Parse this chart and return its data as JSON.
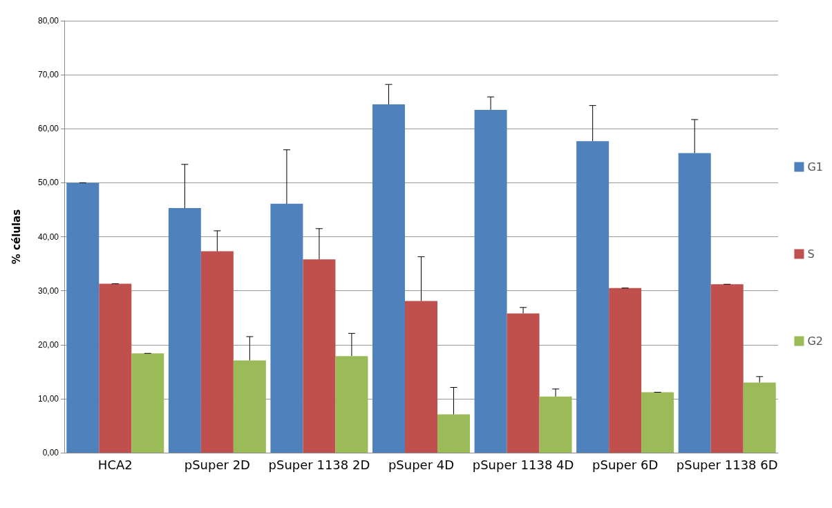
{
  "chart_data": {
    "type": "bar",
    "ylabel": "% células",
    "categories": [
      "HCA2",
      "pSuper 2D",
      "pSuper 1138 2D",
      "pSuper 4D",
      "pSuper 1138 4D",
      "pSuper 6D",
      "pSuper 1138 6D"
    ],
    "series": [
      {
        "name": "G1",
        "color": "#4f81bd",
        "values": [
          50.0,
          45.3,
          46.1,
          64.5,
          63.5,
          57.7,
          55.5
        ],
        "errors": [
          null,
          [
            45.3,
            53.4
          ],
          [
            46.1,
            56.1
          ],
          [
            64.5,
            68.2
          ],
          [
            63.5,
            65.9
          ],
          [
            57.7,
            64.3
          ],
          [
            55.5,
            61.7
          ]
        ]
      },
      {
        "name": "S",
        "color": "#c0504d",
        "values": [
          31.3,
          37.3,
          35.8,
          28.1,
          25.8,
          30.5,
          31.2
        ],
        "errors": [
          null,
          [
            37.3,
            41.1
          ],
          [
            35.8,
            41.5
          ],
          [
            28.1,
            36.3
          ],
          [
            25.8,
            26.9
          ],
          null,
          null
        ]
      },
      {
        "name": "G2",
        "color": "#9bbb59",
        "values": [
          18.4,
          17.1,
          17.9,
          7.1,
          10.4,
          11.2,
          13.0
        ],
        "errors": [
          null,
          [
            17.1,
            21.5
          ],
          [
            17.9,
            22.1
          ],
          [
            7.1,
            12.1
          ],
          [
            10.4,
            11.8
          ],
          null,
          [
            13.0,
            14.1
          ]
        ]
      }
    ],
    "ylim": [
      0,
      80
    ],
    "yticks": [
      {
        "value": 0,
        "label": "0,00"
      },
      {
        "value": 10,
        "label": "10,00"
      },
      {
        "value": 20,
        "label": "20,00"
      },
      {
        "value": 30,
        "label": "30,00"
      },
      {
        "value": 40,
        "label": "40,00"
      },
      {
        "value": 50,
        "label": "50,00"
      },
      {
        "value": 60,
        "label": "60,00"
      },
      {
        "value": 70,
        "label": "70,00"
      },
      {
        "value": 80,
        "label": "80,00"
      }
    ],
    "grid": "y",
    "legend": "right"
  }
}
